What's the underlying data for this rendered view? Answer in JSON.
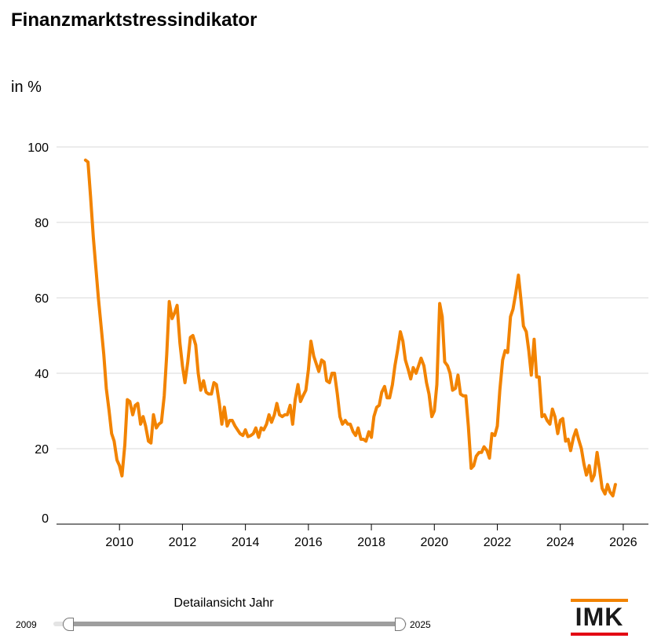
{
  "title": "Finanzmarktstressindikator",
  "unit": "in %",
  "chart_data": {
    "type": "line",
    "title": "Finanzmarktstressindikator",
    "ylabel": "in %",
    "xlabel": "",
    "ylim": [
      0,
      100
    ],
    "xlim": [
      2008.0,
      2026.8
    ],
    "yticks": [
      0,
      20,
      40,
      60,
      80,
      100
    ],
    "xticks": [
      2010,
      2012,
      2014,
      2016,
      2018,
      2020,
      2022,
      2024,
      2026
    ],
    "grid": true,
    "color": "#f28300",
    "series": [
      {
        "name": "",
        "x": [
          2008.92,
          2009.0,
          2009.08,
          2009.17,
          2009.25,
          2009.33,
          2009.42,
          2009.5,
          2009.58,
          2009.67,
          2009.75,
          2009.83,
          2009.92,
          2010.0,
          2010.08,
          2010.17,
          2010.25,
          2010.33,
          2010.42,
          2010.5,
          2010.58,
          2010.67,
          2010.75,
          2010.83,
          2010.92,
          2011.0,
          2011.08,
          2011.17,
          2011.25,
          2011.33,
          2011.42,
          2011.5,
          2011.58,
          2011.67,
          2011.75,
          2011.83,
          2011.92,
          2012.0,
          2012.08,
          2012.17,
          2012.25,
          2012.33,
          2012.42,
          2012.5,
          2012.58,
          2012.67,
          2012.75,
          2012.83,
          2012.92,
          2013.0,
          2013.08,
          2013.17,
          2013.25,
          2013.33,
          2013.42,
          2013.5,
          2013.58,
          2013.67,
          2013.75,
          2013.83,
          2013.92,
          2014.0,
          2014.08,
          2014.17,
          2014.25,
          2014.33,
          2014.42,
          2014.5,
          2014.58,
          2014.67,
          2014.75,
          2014.83,
          2014.92,
          2015.0,
          2015.08,
          2015.17,
          2015.25,
          2015.33,
          2015.42,
          2015.5,
          2015.58,
          2015.67,
          2015.75,
          2015.83,
          2015.92,
          2016.0,
          2016.08,
          2016.17,
          2016.25,
          2016.33,
          2016.42,
          2016.5,
          2016.58,
          2016.67,
          2016.75,
          2016.83,
          2016.92,
          2017.0,
          2017.08,
          2017.17,
          2017.25,
          2017.33,
          2017.42,
          2017.5,
          2017.58,
          2017.67,
          2017.75,
          2017.83,
          2017.92,
          2018.0,
          2018.08,
          2018.17,
          2018.25,
          2018.33,
          2018.42,
          2018.5,
          2018.58,
          2018.67,
          2018.75,
          2018.83,
          2018.92,
          2019.0,
          2019.08,
          2019.17,
          2019.25,
          2019.33,
          2019.42,
          2019.5,
          2019.58,
          2019.67,
          2019.75,
          2019.83,
          2019.92,
          2020.0,
          2020.08,
          2020.17,
          2020.25,
          2020.33,
          2020.42,
          2020.5,
          2020.58,
          2020.67,
          2020.75,
          2020.83,
          2020.92,
          2021.0,
          2021.08,
          2021.17,
          2021.25,
          2021.33,
          2021.42,
          2021.5,
          2021.58,
          2021.67,
          2021.75,
          2021.83,
          2021.92,
          2022.0,
          2022.08,
          2022.17,
          2022.25,
          2022.33,
          2022.42,
          2022.5,
          2022.58,
          2022.67,
          2022.75,
          2022.83,
          2022.92,
          2023.0,
          2023.08,
          2023.17,
          2023.25,
          2023.33,
          2023.42,
          2023.5,
          2023.58,
          2023.67,
          2023.75,
          2023.83,
          2023.92,
          2024.0,
          2024.08,
          2024.17,
          2024.25,
          2024.33,
          2024.42,
          2024.5,
          2024.58,
          2024.67,
          2024.75,
          2024.83,
          2024.92,
          2025.0,
          2025.08,
          2025.17,
          2025.25,
          2025.33,
          2025.42,
          2025.5,
          2025.58,
          2025.67,
          2025.75
        ],
        "values": [
          96.5,
          96,
          87,
          76,
          68,
          60,
          52,
          45,
          36,
          30,
          24,
          22,
          17,
          15.5,
          12.8,
          21,
          33,
          32.5,
          29,
          31.5,
          32,
          26.5,
          28.5,
          26,
          22,
          21.5,
          29,
          25.5,
          26.5,
          27,
          34,
          45,
          59,
          54.5,
          56,
          58,
          48,
          42,
          37.5,
          43,
          49.5,
          50,
          47.5,
          40,
          35.5,
          38,
          35,
          34.5,
          34.5,
          37.5,
          37,
          32,
          26.5,
          31,
          26,
          27.5,
          27.5,
          26,
          25,
          24,
          23.5,
          25,
          23.2,
          23.5,
          24,
          25.5,
          23,
          25.5,
          25,
          26.5,
          29,
          27,
          29,
          32,
          29,
          28.5,
          29,
          29,
          31.5,
          26.5,
          33,
          37,
          32.5,
          34,
          35.5,
          41,
          48.5,
          44.5,
          42.5,
          40.5,
          43.5,
          43,
          38,
          37.5,
          40,
          40,
          34.5,
          28.5,
          26.5,
          27.5,
          26.5,
          26.5,
          24.5,
          23.5,
          25.5,
          22.5,
          22.5,
          22,
          24.5,
          23,
          28.5,
          31,
          31.5,
          35,
          36.5,
          33.5,
          33.5,
          37,
          42,
          46,
          51,
          48.5,
          43.5,
          41,
          38.5,
          41.5,
          40,
          42,
          44,
          42,
          37.5,
          34.5,
          28.5,
          30,
          37,
          58.5,
          55,
          43,
          42,
          40,
          35.5,
          36,
          39.5,
          34.5,
          34,
          34,
          26,
          14.8,
          15.5,
          18,
          19,
          19,
          20.5,
          19.5,
          17.5,
          24,
          23.5,
          26,
          35.5,
          43.5,
          46,
          45.5,
          55,
          57,
          61,
          66,
          59.5,
          52.5,
          51,
          46,
          39.5,
          49,
          39,
          39,
          28.5,
          29,
          27.5,
          26.5,
          30.5,
          28.5,
          24,
          27.5,
          28,
          22,
          22.5,
          19.5,
          23,
          25,
          22.5,
          20,
          16,
          13,
          15.5,
          11.5,
          13,
          19,
          14.5,
          9.5,
          8,
          10.5,
          8.5,
          7.5,
          10.5
        ]
      }
    ]
  },
  "slider": {
    "label": "Detailansicht Jahr",
    "min": "2009",
    "max": "2025"
  },
  "logo": {
    "text": "IMK",
    "top_color": "#f28300",
    "bottom_color": "#e30613"
  }
}
